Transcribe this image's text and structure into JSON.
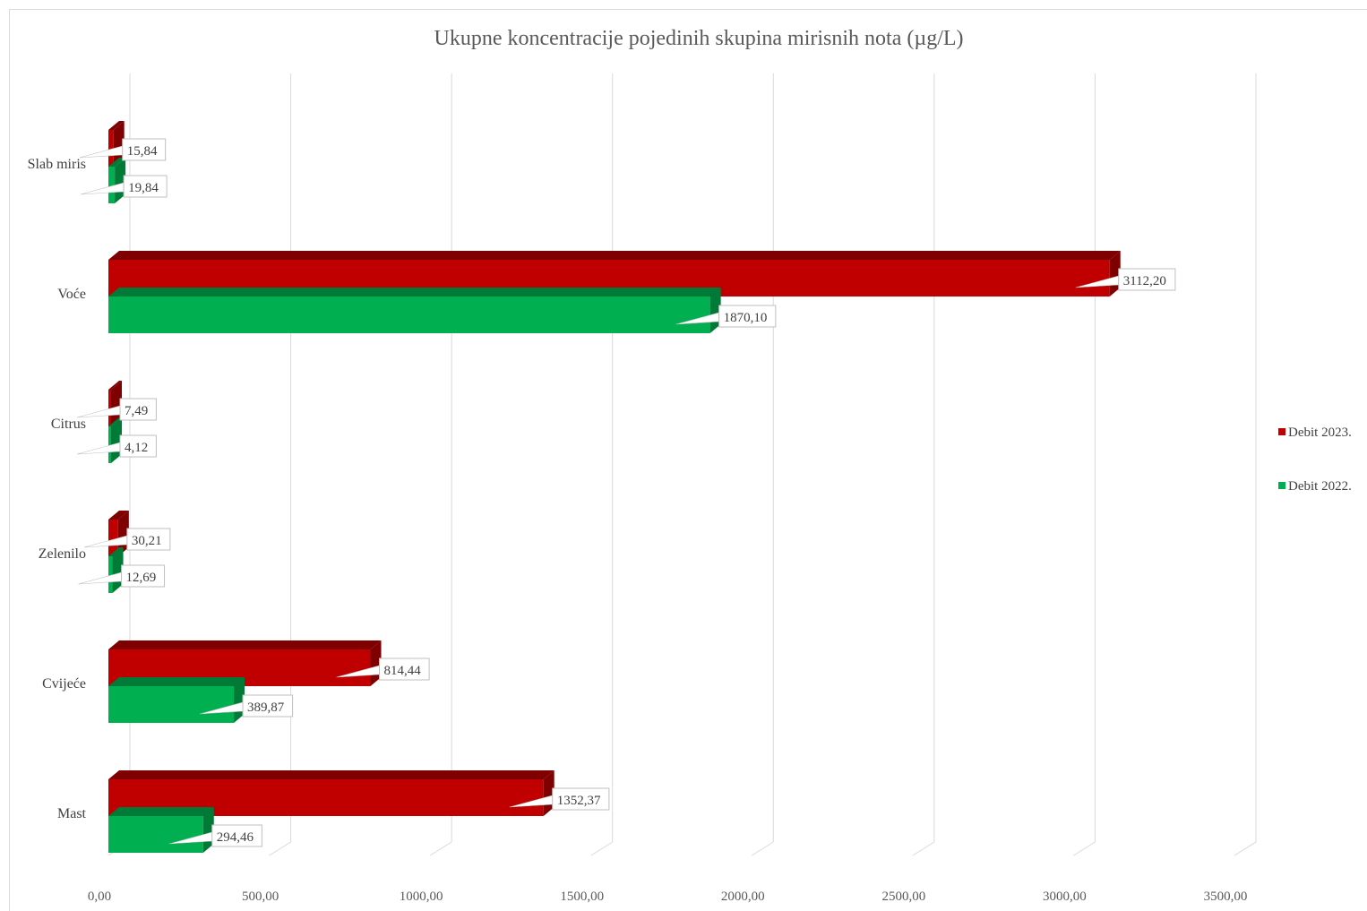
{
  "chart_data": {
    "type": "bar",
    "orientation": "horizontal",
    "title": "Ukupne koncentracije pojedinih skupina mirisnih nota (µg/L)",
    "categories": [
      "Slab miris",
      "Voće",
      "Citrus",
      "Zelenilo",
      "Cvijeće",
      "Mast"
    ],
    "series": [
      {
        "name": "Debit 2023.",
        "values": [
          15.84,
          3112.2,
          7.49,
          30.21,
          814.44,
          1352.37
        ],
        "labels": [
          "15,84",
          "3112,20",
          "7,49",
          "30,21",
          "814,44",
          "1352,37"
        ],
        "color": "#c00000",
        "color_dark": "#7f0000"
      },
      {
        "name": "Debit 2022.",
        "values": [
          19.84,
          1870.1,
          4.12,
          12.69,
          389.87,
          294.46
        ],
        "labels": [
          "19,84",
          "1870,10",
          "4,12",
          "12,69",
          "389,87",
          "294,46"
        ],
        "color": "#00b050",
        "color_dark": "#007a37"
      }
    ],
    "xlim": [
      0,
      3500
    ],
    "xticks": [
      0,
      500,
      1000,
      1500,
      2000,
      2500,
      3000,
      3500
    ],
    "xtick_labels": [
      "0,00",
      "500,00",
      "1000,00",
      "1500,00",
      "2000,00",
      "2500,00",
      "3000,00",
      "3500,00"
    ],
    "grid": true,
    "legend_position": "right",
    "style": "3d-bar"
  }
}
